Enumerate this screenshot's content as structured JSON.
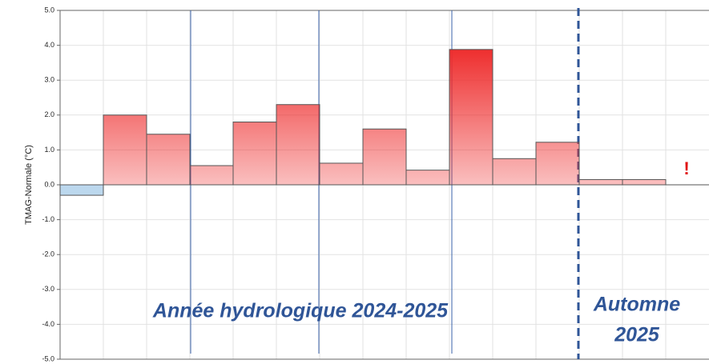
{
  "chart_data": {
    "type": "bar",
    "ylabel": "TMAG-Normale (°C)",
    "categories": [
      null,
      null,
      null,
      null,
      null,
      null,
      null,
      null,
      null,
      null,
      null,
      null,
      null,
      null,
      null
    ],
    "values": [
      -0.3,
      2.0,
      1.45,
      0.55,
      1.8,
      2.3,
      0.62,
      1.6,
      0.42,
      3.88,
      0.75,
      1.22,
      0.15,
      0.15,
      null
    ],
    "color": "#ee2a2a",
    "negative_color": "#bcd8ee",
    "ylim": [
      -5,
      5
    ],
    "yticks": [
      {
        "value": 5,
        "label": "5.0"
      },
      {
        "value": 4,
        "label": "4.0"
      },
      {
        "value": 3,
        "label": "3.0"
      },
      {
        "value": 2,
        "label": "2.0"
      },
      {
        "value": 1,
        "label": "1.0"
      },
      {
        "value": 0,
        "label": "0.0"
      },
      {
        "value": -1,
        "label": "-1.0"
      },
      {
        "value": -2,
        "label": "-2.0"
      },
      {
        "value": -3,
        "label": "-3.0"
      },
      {
        "value": -4,
        "label": "-4.0"
      },
      {
        "value": -5,
        "label": "-5.0"
      }
    ],
    "grid": true,
    "annotations": [
      "Année hydrologique 2024-2025",
      "Automne",
      "2025",
      "!"
    ]
  }
}
